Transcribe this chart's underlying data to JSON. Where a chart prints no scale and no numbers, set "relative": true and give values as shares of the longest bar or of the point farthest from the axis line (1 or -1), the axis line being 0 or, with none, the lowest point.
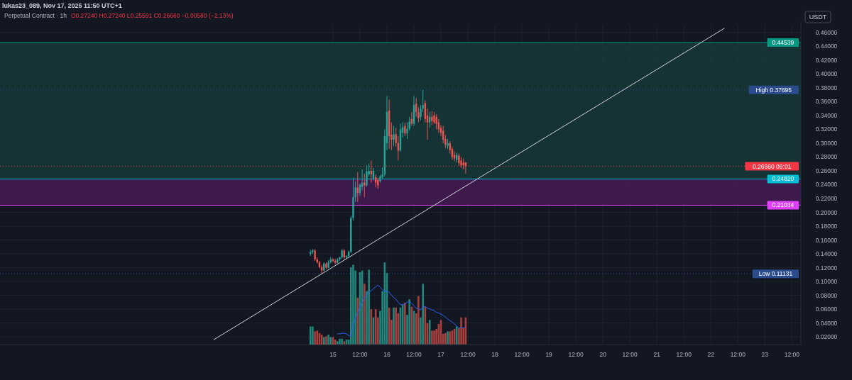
{
  "chart_data": [
    {
      "type": "candlestick",
      "title": "Perpetual Contract · 1h",
      "subtitle": "O0.27240 H0.27240 L0.25591 C0.26660 −0.00580 (−2.13%)",
      "ylabel": "USDT",
      "annotations": [
        "lukas23_089, Nov 17, 2025 11:50 UTC+1"
      ],
      "x": [
        "2025-11-14T14:00",
        "2025-11-14T15:00",
        "2025-11-14T16:00",
        "2025-11-14T17:00",
        "2025-11-14T18:00",
        "2025-11-14T19:00",
        "2025-11-14T20:00",
        "2025-11-14T21:00",
        "2025-11-14T22:00",
        "2025-11-14T23:00",
        "2025-11-15T00:00",
        "2025-11-15T01:00",
        "2025-11-15T02:00",
        "2025-11-15T03:00",
        "2025-11-15T04:00",
        "2025-11-15T05:00",
        "2025-11-15T06:00",
        "2025-11-15T07:00",
        "2025-11-15T08:00",
        "2025-11-15T09:00",
        "2025-11-15T10:00",
        "2025-11-15T11:00",
        "2025-11-15T12:00",
        "2025-11-15T13:00",
        "2025-11-15T14:00",
        "2025-11-15T15:00",
        "2025-11-15T16:00",
        "2025-11-15T17:00",
        "2025-11-15T18:00",
        "2025-11-15T19:00",
        "2025-11-15T20:00",
        "2025-11-15T21:00",
        "2025-11-15T22:00",
        "2025-11-15T23:00",
        "2025-11-16T00:00",
        "2025-11-16T01:00",
        "2025-11-16T02:00",
        "2025-11-16T03:00",
        "2025-11-16T04:00",
        "2025-11-16T05:00",
        "2025-11-16T06:00",
        "2025-11-16T07:00",
        "2025-11-16T08:00",
        "2025-11-16T09:00",
        "2025-11-16T10:00",
        "2025-11-16T11:00",
        "2025-11-16T12:00",
        "2025-11-16T13:00",
        "2025-11-16T14:00",
        "2025-11-16T15:00",
        "2025-11-16T16:00",
        "2025-11-16T17:00",
        "2025-11-16T18:00",
        "2025-11-16T19:00",
        "2025-11-16T20:00",
        "2025-11-16T21:00",
        "2025-11-16T22:00",
        "2025-11-16T23:00",
        "2025-11-17T00:00",
        "2025-11-17T01:00",
        "2025-11-17T02:00",
        "2025-11-17T03:00",
        "2025-11-17T04:00",
        "2025-11-17T05:00",
        "2025-11-17T06:00",
        "2025-11-17T07:00",
        "2025-11-17T08:00",
        "2025-11-17T09:00",
        "2025-11-17T10:00",
        "2025-11-17T11:00"
      ],
      "ohlc": [
        [
          0.14,
          0.146,
          0.137,
          0.143
        ],
        [
          0.143,
          0.147,
          0.14,
          0.145
        ],
        [
          0.145,
          0.147,
          0.13,
          0.132
        ],
        [
          0.132,
          0.135,
          0.126,
          0.128
        ],
        [
          0.128,
          0.13,
          0.119,
          0.121
        ],
        [
          0.121,
          0.124,
          0.11131,
          0.116
        ],
        [
          0.116,
          0.128,
          0.115,
          0.126
        ],
        [
          0.126,
          0.128,
          0.118,
          0.12
        ],
        [
          0.12,
          0.131,
          0.119,
          0.128
        ],
        [
          0.128,
          0.135,
          0.126,
          0.132
        ],
        [
          0.132,
          0.134,
          0.128,
          0.13
        ],
        [
          0.13,
          0.133,
          0.125,
          0.127
        ],
        [
          0.127,
          0.134,
          0.126,
          0.132
        ],
        [
          0.132,
          0.136,
          0.13,
          0.135
        ],
        [
          0.135,
          0.147,
          0.133,
          0.145
        ],
        [
          0.145,
          0.147,
          0.132,
          0.135
        ],
        [
          0.135,
          0.138,
          0.133,
          0.137
        ],
        [
          0.137,
          0.145,
          0.135,
          0.143
        ],
        [
          0.143,
          0.195,
          0.141,
          0.192
        ],
        [
          0.192,
          0.25,
          0.188,
          0.222
        ],
        [
          0.222,
          0.245,
          0.215,
          0.236
        ],
        [
          0.236,
          0.258,
          0.215,
          0.228
        ],
        [
          0.228,
          0.242,
          0.224,
          0.24
        ],
        [
          0.237,
          0.262,
          0.232,
          0.243
        ],
        [
          0.243,
          0.256,
          0.222,
          0.239
        ],
        [
          0.239,
          0.268,
          0.237,
          0.259
        ],
        [
          0.255,
          0.27,
          0.252,
          0.26
        ],
        [
          0.26,
          0.275,
          0.243,
          0.255
        ],
        [
          0.249,
          0.264,
          0.246,
          0.26
        ],
        [
          0.251,
          0.255,
          0.236,
          0.243
        ],
        [
          0.247,
          0.25,
          0.234,
          0.239
        ],
        [
          0.245,
          0.254,
          0.243,
          0.252
        ],
        [
          0.251,
          0.265,
          0.248,
          0.255
        ],
        [
          0.255,
          0.32,
          0.252,
          0.31
        ],
        [
          0.3,
          0.368,
          0.29,
          0.345
        ],
        [
          0.347,
          0.363,
          0.292,
          0.31
        ],
        [
          0.312,
          0.33,
          0.29,
          0.305
        ],
        [
          0.305,
          0.325,
          0.296,
          0.313
        ],
        [
          0.313,
          0.322,
          0.295,
          0.3
        ],
        [
          0.3,
          0.31,
          0.275,
          0.289
        ],
        [
          0.29,
          0.328,
          0.288,
          0.32
        ],
        [
          0.315,
          0.33,
          0.308,
          0.323
        ],
        [
          0.325,
          0.33,
          0.31,
          0.314
        ],
        [
          0.314,
          0.33,
          0.306,
          0.321
        ],
        [
          0.321,
          0.338,
          0.318,
          0.331
        ],
        [
          0.335,
          0.345,
          0.325,
          0.328
        ],
        [
          0.328,
          0.368,
          0.325,
          0.355
        ],
        [
          0.357,
          0.365,
          0.338,
          0.345
        ],
        [
          0.345,
          0.352,
          0.33,
          0.336
        ],
        [
          0.338,
          0.355,
          0.333,
          0.35
        ],
        [
          0.35,
          0.37695,
          0.345,
          0.355
        ],
        [
          0.358,
          0.362,
          0.33,
          0.335
        ],
        [
          0.34,
          0.35,
          0.305,
          0.33
        ],
        [
          0.33,
          0.345,
          0.322,
          0.338
        ],
        [
          0.338,
          0.346,
          0.326,
          0.332
        ],
        [
          0.34,
          0.345,
          0.328,
          0.33
        ],
        [
          0.338,
          0.342,
          0.32,
          0.328
        ],
        [
          0.33,
          0.335,
          0.315,
          0.32
        ],
        [
          0.322,
          0.326,
          0.31,
          0.315
        ],
        [
          0.318,
          0.325,
          0.3,
          0.305
        ],
        [
          0.306,
          0.312,
          0.293,
          0.298
        ],
        [
          0.296,
          0.306,
          0.292,
          0.3
        ],
        [
          0.3,
          0.303,
          0.285,
          0.29
        ],
        [
          0.292,
          0.295,
          0.276,
          0.28
        ],
        [
          0.283,
          0.288,
          0.274,
          0.278
        ],
        [
          0.276,
          0.286,
          0.272,
          0.283
        ],
        [
          0.282,
          0.285,
          0.267,
          0.271
        ],
        [
          0.275,
          0.28,
          0.264,
          0.268
        ],
        [
          0.272,
          0.278,
          0.262,
          0.268
        ],
        [
          0.2724,
          0.2724,
          0.25591,
          0.2666
        ]
      ],
      "colors": [
        "#26a69a",
        "#26a69a",
        "#ef5350",
        "#ef5350",
        "#ef5350",
        "#ef5350",
        "#26a69a",
        "#ef5350",
        "#26a69a",
        "#26a69a",
        "#ef5350",
        "#ef5350",
        "#26a69a",
        "#26a69a",
        "#26a69a",
        "#ef5350",
        "#26a69a",
        "#26a69a",
        "#26a69a",
        "#26a69a",
        "#26a69a",
        "#ef5350",
        "#26a69a",
        "#26a69a",
        "#ef5350",
        "#26a69a",
        "#26a69a",
        "#ef5350",
        "#26a69a",
        "#ef5350",
        "#ef5350",
        "#26a69a",
        "#26a69a",
        "#26a69a",
        "#26a69a",
        "#ef5350",
        "#ef5350",
        "#26a69a",
        "#ef5350",
        "#ef5350",
        "#26a69a",
        "#26a69a",
        "#ef5350",
        "#26a69a",
        "#26a69a",
        "#ef5350",
        "#26a69a",
        "#ef5350",
        "#ef5350",
        "#26a69a",
        "#26a69a",
        "#ef5350",
        "#ef5350",
        "#26a69a",
        "#ef5350",
        "#ef5350",
        "#ef5350",
        "#ef5350",
        "#ef5350",
        "#ef5350",
        "#ef5350",
        "#26a69a",
        "#ef5350",
        "#ef5350",
        "#ef5350",
        "#26a69a",
        "#ef5350",
        "#ef5350",
        "#ef5350",
        "#ef5350"
      ],
      "series": [
        {
          "type": "line",
          "x": [
            "2025-11-12T19:00",
            "2025-11-22T06:00"
          ],
          "values": [
            0.016,
            0.466
          ],
          "color": "#d1d4dc"
        }
      ],
      "bands": [
        {
          "axis": "y",
          "from": 0.2482,
          "to": 0.44539,
          "color": "#17393a"
        },
        {
          "axis": "y",
          "from": 0.21034,
          "to": 0.2482,
          "color": "#4a1a57"
        }
      ],
      "ref_lines": [
        {
          "axis": "y",
          "value": 0.44539,
          "label": "0.44539",
          "color": "#089981"
        },
        {
          "axis": "y",
          "value": 0.37695,
          "label": "High 0.37695",
          "color": "#2b4c8c",
          "line_style": "dotted"
        },
        {
          "axis": "y",
          "value": 0.2666,
          "label": "0.26660 09:01",
          "color": "#f23645",
          "line_style": "dotted"
        },
        {
          "axis": "y",
          "value": 0.2482,
          "label": "0.24820",
          "color": "#00bcd4"
        },
        {
          "axis": "y",
          "value": 0.21034,
          "label": "0.21034",
          "color": "#e040fb"
        },
        {
          "axis": "y",
          "value": 0.11131,
          "label": "Low 0.11131",
          "color": "#2b4c8c",
          "line_style": "dotted"
        }
      ],
      "xlim": [
        "2025-11-08T20:00",
        "2025-11-23T16:00"
      ],
      "xticks": [
        {
          "value": "2025-11-15",
          "label": "15"
        },
        {
          "value": "2025-11-15T12:00",
          "label": "12:00"
        },
        {
          "value": "2025-11-16",
          "label": "16"
        },
        {
          "value": "2025-11-16T12:00",
          "label": "12:00"
        },
        {
          "value": "2025-11-17",
          "label": "17"
        },
        {
          "value": "2025-11-17T12:00",
          "label": "12:00"
        },
        {
          "value": "2025-11-18",
          "label": "18"
        },
        {
          "value": "2025-11-18T12:00",
          "label": "12:00"
        },
        {
          "value": "2025-11-19",
          "label": "19"
        },
        {
          "value": "2025-11-19T12:00",
          "label": "12:00"
        },
        {
          "value": "2025-11-20",
          "label": "20"
        },
        {
          "value": "2025-11-20T12:00",
          "label": "12:00"
        },
        {
          "value": "2025-11-21",
          "label": "21"
        },
        {
          "value": "2025-11-21T12:00",
          "label": "12:00"
        },
        {
          "value": "2025-11-22",
          "label": "22"
        },
        {
          "value": "2025-11-22T12:00",
          "label": "12:00"
        },
        {
          "value": "2025-11-23",
          "label": "23"
        },
        {
          "value": "2025-11-23T12:00",
          "label": "12:00"
        }
      ],
      "ylim": [
        0.009,
        0.47
      ],
      "yticks": [
        {
          "value": 0.02,
          "label": "0.02000"
        },
        {
          "value": 0.04,
          "label": "0.04000"
        },
        {
          "value": 0.06,
          "label": "0.06000"
        },
        {
          "value": 0.08,
          "label": "0.08000"
        },
        {
          "value": 0.1,
          "label": "0.10000"
        },
        {
          "value": 0.12,
          "label": "0.12000"
        },
        {
          "value": 0.14,
          "label": "0.14000"
        },
        {
          "value": 0.16,
          "label": "0.16000"
        },
        {
          "value": 0.18,
          "label": "0.18000"
        },
        {
          "value": 0.2,
          "label": "0.20000"
        },
        {
          "value": 0.22,
          "label": "0.22000"
        },
        {
          "value": 0.24,
          "label": "0.24000"
        },
        {
          "value": 0.26,
          "label": "0.26000"
        },
        {
          "value": 0.28,
          "label": "0.28000"
        },
        {
          "value": 0.3,
          "label": "0.30000"
        },
        {
          "value": 0.32,
          "label": "0.32000"
        },
        {
          "value": 0.34,
          "label": "0.34000"
        },
        {
          "value": 0.36,
          "label": "0.36000"
        },
        {
          "value": 0.38,
          "label": "0.38000"
        },
        {
          "value": 0.4,
          "label": "0.40000"
        },
        {
          "value": 0.42,
          "label": "0.42000"
        },
        {
          "value": 0.44,
          "label": "0.44000"
        },
        {
          "value": 0.46,
          "label": "0.46000"
        }
      ],
      "grid": true
    },
    {
      "type": "bar",
      "relative": true,
      "categories": [
        null,
        null,
        null,
        null,
        null,
        null,
        null,
        null,
        null,
        null,
        null,
        null,
        null,
        null,
        null,
        null,
        null,
        null,
        null,
        null,
        null,
        null,
        null,
        null,
        null,
        null,
        null,
        null,
        null,
        null,
        null,
        null,
        null,
        null,
        null,
        null,
        null,
        null,
        null,
        null,
        null,
        null,
        null,
        null,
        null,
        null,
        null,
        null,
        null,
        null,
        null,
        null,
        null,
        null,
        null,
        null,
        null,
        null,
        null,
        null,
        null,
        null,
        null,
        null,
        null,
        null,
        null,
        null,
        null,
        null
      ],
      "values": [
        0.22,
        0.22,
        0.16,
        0.17,
        0.14,
        0.12,
        0.09,
        0.1,
        0.12,
        0.09,
        0.09,
        0.06,
        0.04,
        0.07,
        0.07,
        0.04,
        0.06,
        0.06,
        0.94,
        0.97,
        0.9,
        0.57,
        0.88,
        0.9,
        0.74,
        0.65,
        0.91,
        0.43,
        0.33,
        0.43,
        0.33,
        0.41,
        0.65,
        1.0,
        0.87,
        0.45,
        0.3,
        0.45,
        0.45,
        0.38,
        0.45,
        0.49,
        0.51,
        0.36,
        0.55,
        0.46,
        0.41,
        0.38,
        0.59,
        0.33,
        0.74,
        0.46,
        0.26,
        0.3,
        0.17,
        0.17,
        0.19,
        0.25,
        0.3,
        0.13,
        0.14,
        0.16,
        0.16,
        0.17,
        0.19,
        0.22,
        0.2,
        0.33,
        0.2,
        0.33
      ],
      "colors": [
        "#22867c",
        "#22867c",
        "#a8403e",
        "#a8403e",
        "#a8403e",
        "#a8403e",
        "#22867c",
        "#a8403e",
        "#22867c",
        "#22867c",
        "#a8403e",
        "#a8403e",
        "#22867c",
        "#22867c",
        "#22867c",
        "#a8403e",
        "#22867c",
        "#22867c",
        "#22867c",
        "#22867c",
        "#22867c",
        "#a8403e",
        "#22867c",
        "#22867c",
        "#a8403e",
        "#22867c",
        "#22867c",
        "#a8403e",
        "#22867c",
        "#a8403e",
        "#a8403e",
        "#22867c",
        "#22867c",
        "#22867c",
        "#22867c",
        "#a8403e",
        "#a8403e",
        "#22867c",
        "#a8403e",
        "#a8403e",
        "#22867c",
        "#22867c",
        "#a8403e",
        "#22867c",
        "#22867c",
        "#a8403e",
        "#22867c",
        "#a8403e",
        "#a8403e",
        "#22867c",
        "#22867c",
        "#a8403e",
        "#a8403e",
        "#22867c",
        "#a8403e",
        "#a8403e",
        "#a8403e",
        "#a8403e",
        "#a8403e",
        "#a8403e",
        "#a8403e",
        "#22867c",
        "#a8403e",
        "#a8403e",
        "#a8403e",
        "#22867c",
        "#a8403e",
        "#a8403e",
        "#a8403e",
        "#a8403e"
      ]
    },
    {
      "type": "line",
      "relative": true,
      "color": "#2962ff",
      "categories": [
        null,
        null,
        null,
        null,
        null,
        null,
        null,
        null,
        null,
        null,
        null,
        null,
        null,
        null,
        null,
        null,
        null,
        null,
        null,
        null,
        null,
        null,
        null,
        null,
        null,
        null,
        null,
        null,
        null,
        null,
        null,
        null,
        null,
        null,
        null,
        null,
        null,
        null,
        null,
        null,
        null,
        null,
        null,
        null,
        null,
        null,
        null,
        null,
        null,
        null,
        null,
        null,
        null,
        null,
        null,
        null,
        null,
        null
      ],
      "values": [
        0.18,
        0.18,
        0.19,
        0.19,
        0.18,
        0.15,
        0.14,
        0.33,
        0.44,
        0.53,
        0.63,
        0.71,
        0.78,
        0.83,
        0.89,
        0.9,
        0.94,
        0.97,
        1.0,
        0.96,
        0.92,
        0.9,
        0.9,
        0.88,
        0.83,
        0.79,
        0.76,
        0.71,
        0.67,
        0.67,
        0.68,
        0.71,
        0.72,
        0.69,
        0.65,
        0.61,
        0.6,
        0.58,
        0.64,
        0.64,
        0.61,
        0.6,
        0.58,
        0.57,
        0.54,
        0.53,
        0.51,
        0.49,
        0.46,
        0.43,
        0.4,
        0.38,
        0.35,
        0.31,
        0.28,
        0.28,
        0.28,
        0.29
      ]
    }
  ]
}
